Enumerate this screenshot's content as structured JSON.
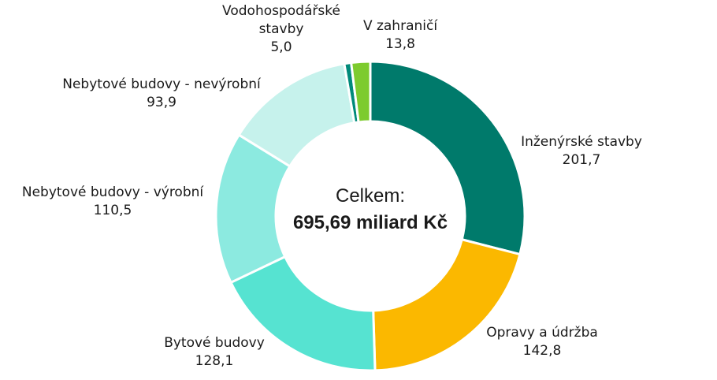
{
  "chart_data": {
    "type": "pie",
    "style": "donut",
    "center_label": {
      "line1": "Celkem:",
      "line2": "695,69 miliard Kč"
    },
    "slices": [
      {
        "label_lines": [
          "Inženýrské stavby"
        ],
        "value_text": "201,7",
        "value": 201.7,
        "color": "#007A6B"
      },
      {
        "label_lines": [
          "Opravy a údržba"
        ],
        "value_text": "142,8",
        "value": 142.8,
        "color": "#FBB800"
      },
      {
        "label_lines": [
          "Bytové budovy"
        ],
        "value_text": "128,1",
        "value": 128.1,
        "color": "#56E3D1"
      },
      {
        "label_lines": [
          "Nebytové budovy - výrobní"
        ],
        "value_text": "110,5",
        "value": 110.5,
        "color": "#8CEAE0"
      },
      {
        "label_lines": [
          "Nebytové budovy - nevýrobní"
        ],
        "value_text": "93,9",
        "value": 93.9,
        "color": "#C6F2EC"
      },
      {
        "label_lines": [
          "Vodohospodářské",
          "stavby"
        ],
        "value_text": "5,0",
        "value": 5.0,
        "color": "#008A7A"
      },
      {
        "label_lines": [
          "V zahraničí"
        ],
        "value_text": "13,8",
        "value": 13.8,
        "color": "#7DCB2E"
      }
    ]
  }
}
